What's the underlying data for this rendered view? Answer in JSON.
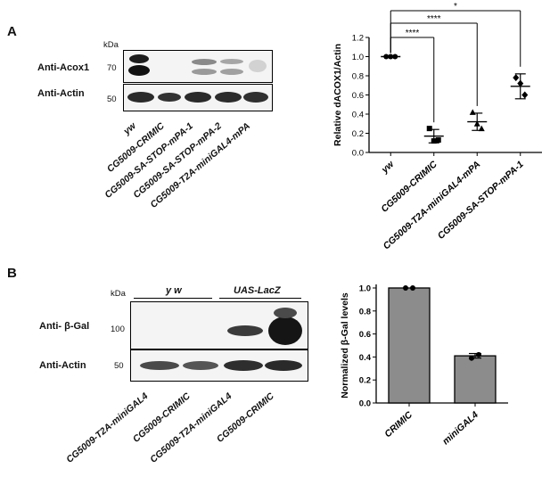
{
  "panel_a": {
    "letter": "A",
    "blot": {
      "kda_label": "kDa",
      "markers_top": [
        "70"
      ],
      "markers_bottom": [
        "50"
      ],
      "row_labels": [
        "Anti-Acox1",
        "Anti-Actin"
      ],
      "lanes": [
        "yw",
        "CG5009-CRIMIC",
        "CG5009-SA-STOP-mPA-1",
        "CG5009-SA-STOP-mPA-2",
        "CG5009-T2A-miniGAL4-mPA"
      ]
    },
    "chart_data": {
      "type": "scatter",
      "ylabel": "Relative dACOX1/Actin",
      "ylim": [
        0.0,
        1.2
      ],
      "yticks": [
        "0.0",
        "0.2",
        "0.4",
        "0.6",
        "0.8",
        "1.0",
        "1.2"
      ],
      "categories": [
        "yw",
        "CG5009-CRIMIC",
        "CG5009-T2A-miniGAL4-mPA",
        "CG5009-SA-STOP-mPA-1"
      ],
      "points": [
        [
          1.0,
          1.0,
          1.0
        ],
        [
          0.25,
          0.12,
          0.13
        ],
        [
          0.42,
          0.3,
          0.25
        ],
        [
          0.78,
          0.72,
          0.6
        ]
      ],
      "means": [
        1.0,
        0.17,
        0.32,
        0.69
      ],
      "sd": [
        0.0,
        0.07,
        0.09,
        0.13
      ],
      "markers": [
        "circle",
        "square",
        "triangle",
        "diamond"
      ],
      "significance": [
        "****",
        "****",
        "*"
      ]
    }
  },
  "panel_b": {
    "letter": "B",
    "blot": {
      "kda_label": "kDa",
      "markers_top": [
        "100"
      ],
      "markers_bottom": [
        "50"
      ],
      "row_labels": [
        "Anti- β-Gal",
        "Anti-Actin"
      ],
      "groups": [
        "y w",
        "UAS-LacZ"
      ],
      "lanes": [
        "CG5009-T2A-miniGAL4",
        "CG5009-CRIMIC",
        "CG5009-T2A-miniGAL4",
        "CG5009-CRIMIC"
      ]
    },
    "chart_data": {
      "type": "bar",
      "ylabel": "Normalized β-Gal levels",
      "ylim": [
        0.0,
        1.0
      ],
      "yticks": [
        "0.0",
        "0.2",
        "0.4",
        "0.6",
        "0.8",
        "1.0"
      ],
      "categories": [
        "CRIMIC",
        "miniGAL4"
      ],
      "values": [
        1.0,
        0.41
      ],
      "points": [
        [
          1.0,
          1.0
        ],
        [
          0.39,
          0.42
        ]
      ],
      "sd": [
        0.0,
        0.02
      ],
      "bar_color": "#8c8c8c"
    }
  }
}
